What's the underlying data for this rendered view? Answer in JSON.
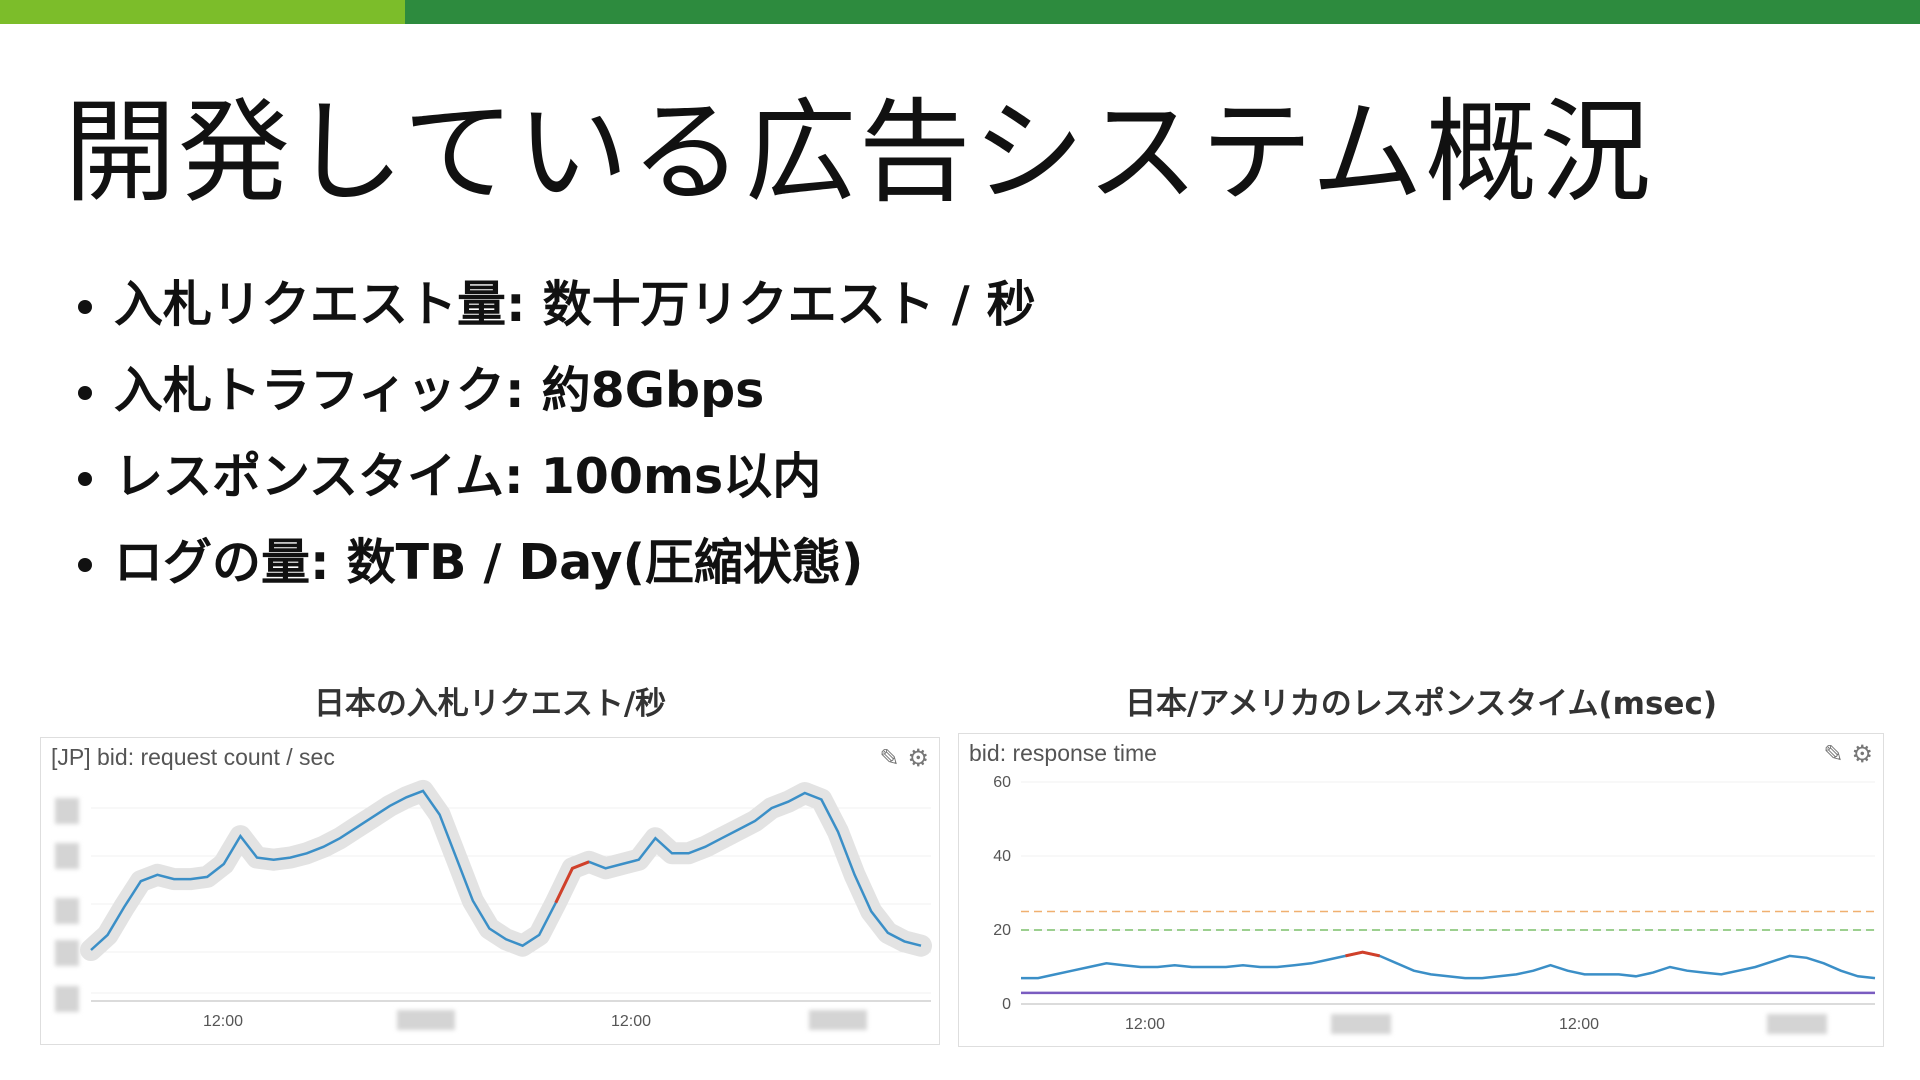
{
  "colors": {
    "bar_light": "#7cbd2a",
    "bar_dark": "#2d8b3e",
    "line_blue": "#3b8fc7",
    "spike_red": "#d0402a",
    "band_gray": "#e3e3e3",
    "threshold_orange": "#f0b070",
    "threshold_green": "#7bbf6a",
    "line_purple": "#7a5cc0"
  },
  "title": "開発している広告システム概況",
  "bullets": [
    "入札リクエスト量: 数十万リクエスト / 秒",
    "入札トラフィック: 約8Gbps",
    "レスポンスタイム: 100ms以内",
    "ログの量: 数TB / Day(圧縮状態)"
  ],
  "chart_left": {
    "heading": "日本の入札リクエスト/秒",
    "panel_title": "[JP] bid: request count / sec",
    "edit_icon": "pencil-icon",
    "settings_icon": "gear-icon",
    "x_tick_1": "12:00",
    "x_tick_2": "12:00"
  },
  "chart_right": {
    "heading": "日本/アメリカのレスポンスタイム(msec)",
    "panel_title": "bid: response time",
    "edit_icon": "pencil-icon",
    "settings_icon": "gear-icon",
    "y_ticks": [
      "60",
      "40",
      "20",
      "0"
    ],
    "x_tick_1": "12:00",
    "x_tick_2": "12:00"
  },
  "chart_data": [
    {
      "type": "line",
      "title": "[JP] bid: request count / sec",
      "x": [
        0,
        2,
        4,
        6,
        8,
        10,
        12,
        14,
        16,
        18,
        20,
        22,
        24,
        26,
        28,
        30,
        32,
        34,
        36,
        38,
        40,
        42,
        44,
        46,
        48,
        50,
        52,
        54,
        56,
        58,
        60,
        62,
        64,
        66,
        68,
        70,
        72,
        74,
        76,
        78,
        80,
        82,
        84,
        86,
        88,
        90,
        92,
        94,
        96,
        98,
        100
      ],
      "series": [
        {
          "values": [
            0.2,
            0.27,
            0.4,
            0.52,
            0.55,
            0.53,
            0.53,
            0.54,
            0.6,
            0.73,
            0.63,
            0.62,
            0.63,
            0.65,
            0.68,
            0.72,
            0.77,
            0.82,
            0.87,
            0.91,
            0.94,
            0.83,
            0.63,
            0.43,
            0.3,
            0.25,
            0.22,
            0.27,
            0.42,
            0.58,
            0.61,
            0.58,
            0.6,
            0.62,
            0.72,
            0.65,
            0.65,
            0.68,
            0.72,
            0.76,
            0.8,
            0.86,
            0.89,
            0.93,
            0.9,
            0.75,
            0.55,
            0.38,
            0.28,
            0.24,
            0.22
          ]
        }
      ]
    },
    {
      "type": "line",
      "title": "bid: response time",
      "ylim": [
        0,
        60
      ],
      "x": [
        0,
        2,
        4,
        6,
        8,
        10,
        12,
        14,
        16,
        18,
        20,
        22,
        24,
        26,
        28,
        30,
        32,
        34,
        36,
        38,
        40,
        42,
        44,
        46,
        48,
        50,
        52,
        54,
        56,
        58,
        60,
        62,
        64,
        66,
        68,
        70,
        72,
        74,
        76,
        78,
        80,
        82,
        84,
        86,
        88,
        90,
        92,
        94,
        96,
        98,
        100
      ],
      "series": [
        {
          "values": [
            7,
            7,
            8,
            9,
            10,
            11,
            10.5,
            10,
            10,
            10.5,
            10,
            10,
            10,
            10.5,
            10,
            10,
            10.5,
            11,
            12,
            13,
            14,
            13,
            11,
            9,
            8,
            7.5,
            7,
            7,
            7.5,
            8,
            9,
            10.5,
            9,
            8,
            8,
            8,
            7.5,
            8.5,
            10,
            9,
            8.5,
            8,
            9,
            10,
            11.5,
            13,
            12.5,
            11,
            9,
            7.5,
            7
          ]
        },
        {
          "values": [
            3,
            3,
            3,
            3,
            3,
            3,
            3,
            3,
            3,
            3,
            3,
            3,
            3,
            3,
            3,
            3,
            3,
            3,
            3,
            3,
            3,
            3,
            3,
            3,
            3,
            3,
            3,
            3,
            3,
            3,
            3,
            3,
            3,
            3,
            3,
            3,
            3,
            3,
            3,
            3,
            3,
            3,
            3,
            3,
            3,
            3,
            3,
            3,
            3,
            3,
            3
          ]
        }
      ],
      "thresholds": [
        25,
        20
      ]
    }
  ]
}
